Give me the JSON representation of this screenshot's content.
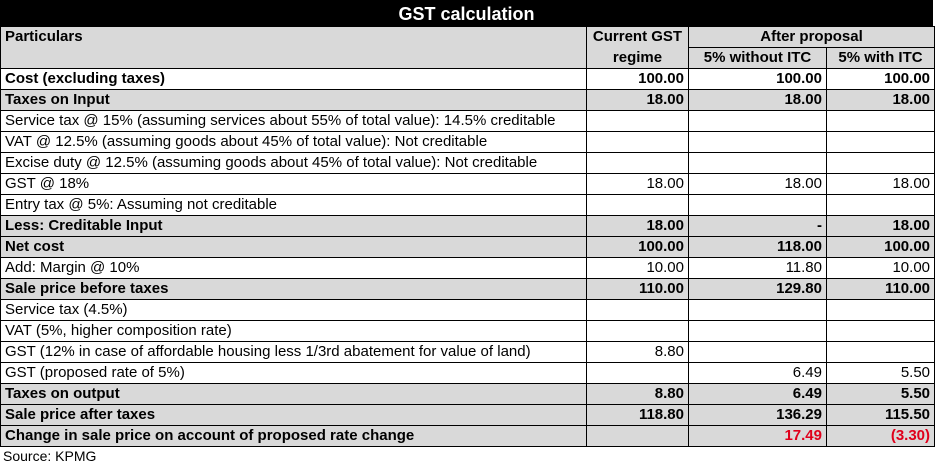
{
  "title": "GST calculation",
  "headers": {
    "particulars": "Particulars",
    "current": "Current GST regime",
    "current_line1": "Current GST",
    "current_line2": "regime",
    "after": "After proposal",
    "without_itc": "5% without ITC",
    "with_itc": "5% with ITC"
  },
  "rows": [
    {
      "label": "Cost (excluding taxes)",
      "bold": true,
      "bg": false,
      "v": [
        "100.00",
        "100.00",
        "100.00"
      ]
    },
    {
      "label": "Taxes on Input",
      "bold": true,
      "v": [
        "18.00",
        "18.00",
        "18.00"
      ]
    },
    {
      "label": "Service tax @ 15% (assuming services about 55% of total value): 14.5% creditable",
      "bold": false,
      "v": [
        "",
        "",
        ""
      ]
    },
    {
      "label": "VAT @ 12.5% (assuming goods about 45% of total value): Not creditable",
      "bold": false,
      "v": [
        "",
        "",
        ""
      ]
    },
    {
      "label": "Excise duty @ 12.5% (assuming goods about 45% of total value): Not creditable",
      "bold": false,
      "v": [
        "",
        "",
        ""
      ]
    },
    {
      "label": "GST @ 18%",
      "bold": false,
      "v": [
        "18.00",
        "18.00",
        "18.00"
      ]
    },
    {
      "label": "Entry tax @ 5%: Assuming not creditable",
      "bold": false,
      "v": [
        "",
        "",
        ""
      ]
    },
    {
      "label": "Less: Creditable Input",
      "bold": true,
      "v": [
        "18.00",
        "-",
        "18.00"
      ]
    },
    {
      "label": "Net cost",
      "bold": true,
      "v": [
        "100.00",
        "118.00",
        "100.00"
      ]
    },
    {
      "label": "Add: Margin @ 10%",
      "bold": false,
      "v": [
        "10.00",
        "11.80",
        "10.00"
      ]
    },
    {
      "label": "Sale price before taxes",
      "bold": true,
      "v": [
        "110.00",
        "129.80",
        "110.00"
      ]
    },
    {
      "label": "Service tax (4.5%)",
      "bold": false,
      "v": [
        "",
        "",
        ""
      ]
    },
    {
      "label": "VAT (5%, higher composition rate)",
      "bold": false,
      "v": [
        "",
        "",
        ""
      ]
    },
    {
      "label": "GST (12% in case of affordable housing less 1/3rd abatement for value of land)",
      "bold": false,
      "v": [
        "8.80",
        "",
        ""
      ]
    },
    {
      "label": "GST (proposed rate of 5%)",
      "bold": false,
      "v": [
        "",
        "6.49",
        "5.50"
      ]
    },
    {
      "label": "Taxes on output",
      "bold": true,
      "v": [
        "8.80",
        "6.49",
        "5.50"
      ]
    },
    {
      "label": "Sale price after taxes",
      "bold": true,
      "v": [
        "118.80",
        "136.29",
        "115.50"
      ]
    },
    {
      "label": "Change in sale price on account of proposed rate change",
      "bold": true,
      "red": true,
      "v": [
        "",
        "17.49",
        "(3.30)"
      ]
    }
  ],
  "source": "Source: KPMG",
  "colors": {
    "header_bg": "#000000",
    "gray": "#d9d9d9",
    "negative": "#e0001b"
  }
}
